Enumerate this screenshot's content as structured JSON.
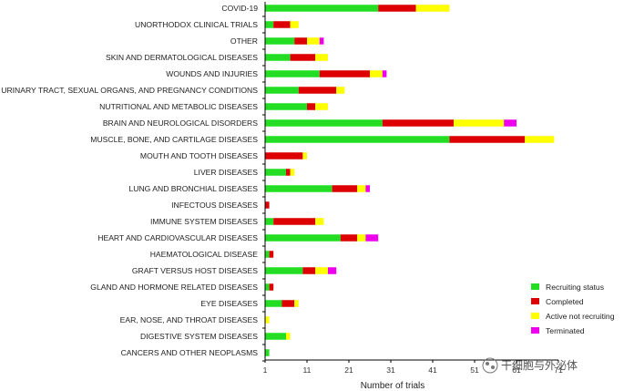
{
  "chart_data": {
    "type": "bar",
    "orientation": "horizontal",
    "stacked": true,
    "categories": [
      "COVID-19",
      "UNORTHODOX CLINICAL TRIALS",
      "OTHER",
      "SKIN AND DERMATOLOGICAL DISEASES",
      "WOUNDS AND INJURIES",
      "URINARY TRACT, SEXUAL ORGANS, AND PREGNANCY CONDITIONS",
      "NUTRITIONAL AND METABOLIC DISEASES",
      "BRAIN AND NEUROLOGICAL DISORDERS",
      "MUSCLE, BONE, AND CARTILAGE DISEASES",
      "MOUTH AND TOOTH DISEASES",
      "LIVER DISEASES",
      "LUNG AND BRONCHIAL DISEASES",
      "INFECTOUS DISEASES",
      "IMMUNE SYSTEM DISEASES",
      "HEART AND CARDIOVASCULAR DISEASES",
      "HAEMATOLOGICAL DISEASE",
      "GRAFT VERSUS HOST DISEASES",
      "GLAND AND HORMONE RELATED DISEASES",
      "EYE DISEASES",
      "EAR, NOSE, AND THROAT DISEASES",
      "DIGESTIVE SYSTEM DISEASES",
      "CANCERS AND OTHER NEOPLASMS"
    ],
    "series": [
      {
        "name": "Recruiting status",
        "color": "#22dd22",
        "values": [
          27,
          2,
          7,
          6,
          13,
          8,
          10,
          28,
          44,
          0,
          5,
          16,
          0,
          2,
          18,
          1,
          9,
          1,
          4,
          0,
          5,
          1
        ]
      },
      {
        "name": "Completed",
        "color": "#dd0000",
        "values": [
          9,
          4,
          3,
          6,
          12,
          9,
          2,
          17,
          18,
          9,
          1,
          6,
          1,
          10,
          4,
          1,
          3,
          1,
          3,
          0,
          0,
          0
        ]
      },
      {
        "name": "Active not recruiting",
        "color": "#ffff00",
        "values": [
          8,
          2,
          3,
          3,
          3,
          2,
          3,
          12,
          7,
          1,
          1,
          2,
          0,
          2,
          2,
          0,
          3,
          0,
          1,
          1,
          1,
          0
        ]
      },
      {
        "name": "Terminated",
        "color": "#ee00ee",
        "values": [
          0,
          0,
          1,
          0,
          1,
          0,
          0,
          3,
          0,
          0,
          0,
          1,
          0,
          0,
          3,
          0,
          2,
          0,
          0,
          0,
          0,
          0
        ]
      }
    ],
    "xlabel": "Number of trials",
    "xlim": [
      1,
      71
    ],
    "xticks": [
      "1",
      "11",
      "21",
      "31",
      "41",
      "51",
      "61",
      "71"
    ],
    "grid": false,
    "legend_position": "bottom-right"
  },
  "watermark": {
    "text": "干细胞与外泌体"
  }
}
